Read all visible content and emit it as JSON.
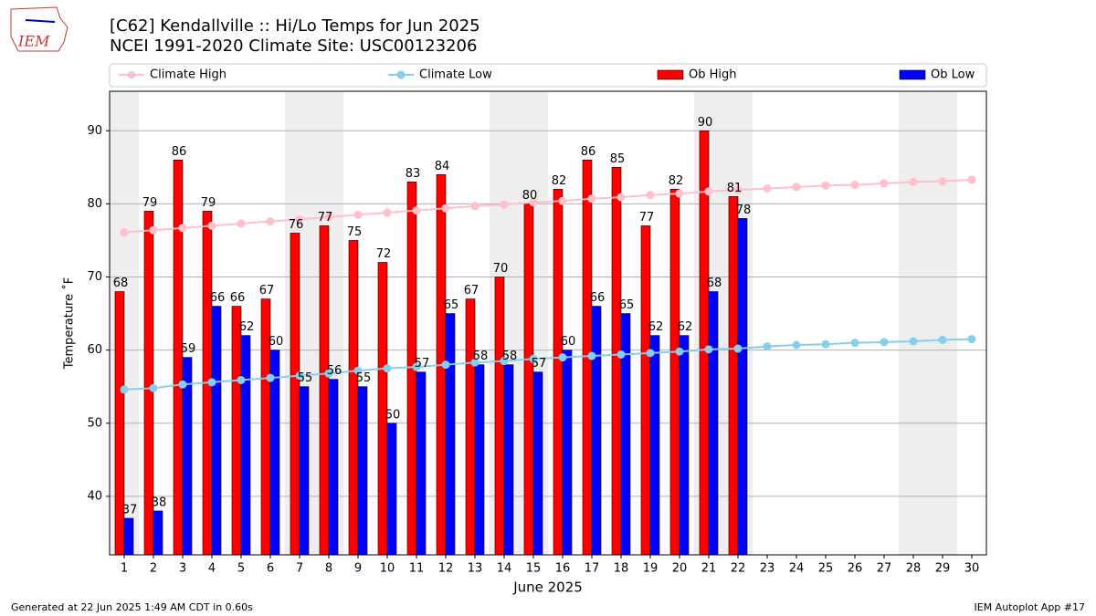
{
  "chart_data": {
    "type": "bar",
    "title": "[C62] Kendallville :: Hi/Lo Temps for Jun 2025",
    "subtitle": "NCEI 1991-2020 Climate Site: USC00123206",
    "x_label": "June 2025",
    "y_label": "Temperature ˚F",
    "categories": [
      "1",
      "2",
      "3",
      "4",
      "5",
      "6",
      "7",
      "8",
      "9",
      "10",
      "11",
      "12",
      "13",
      "14",
      "15",
      "16",
      "17",
      "18",
      "19",
      "20",
      "21",
      "22",
      "23",
      "24",
      "25",
      "26",
      "27",
      "28",
      "29",
      "30"
    ],
    "series": [
      {
        "name": "Climate High",
        "type": "line",
        "color": "#ffc0cb",
        "values": [
          76.1,
          76.4,
          76.7,
          77.0,
          77.3,
          77.6,
          77.9,
          78.2,
          78.5,
          78.8,
          79.1,
          79.4,
          79.7,
          79.9,
          80.2,
          80.4,
          80.7,
          80.9,
          81.2,
          81.4,
          81.7,
          81.9,
          82.1,
          82.3,
          82.5,
          82.6,
          82.8,
          83.0,
          83.1,
          83.3
        ]
      },
      {
        "name": "Climate Low",
        "type": "line",
        "color": "#87ceeb",
        "values": [
          54.6,
          54.8,
          55.3,
          55.6,
          55.9,
          56.2,
          56.5,
          56.8,
          57.2,
          57.5,
          57.7,
          58.0,
          58.3,
          58.5,
          58.8,
          59.0,
          59.2,
          59.4,
          59.6,
          59.8,
          60.1,
          60.2,
          60.5,
          60.7,
          60.8,
          61.0,
          61.1,
          61.2,
          61.4,
          61.5
        ]
      },
      {
        "name": "Ob High",
        "type": "bar",
        "color": "#ff0000",
        "values": [
          68,
          79,
          86,
          79,
          66,
          67,
          76,
          77,
          75,
          72,
          83,
          84,
          67,
          70,
          80,
          82,
          86,
          85,
          77,
          82,
          90,
          81,
          null,
          null,
          null,
          null,
          null,
          null,
          null,
          null
        ]
      },
      {
        "name": "Ob Low",
        "type": "bar",
        "color": "#0000ff",
        "values": [
          37,
          38,
          59,
          66,
          62,
          60,
          55,
          56,
          55,
          50,
          57,
          65,
          58,
          58,
          57,
          60,
          66,
          65,
          62,
          62,
          68,
          78,
          null,
          null,
          null,
          null,
          null,
          null,
          null,
          null
        ]
      }
    ],
    "ylim": [
      32,
      95.4
    ],
    "yticks": [
      40,
      50,
      60,
      70,
      80,
      90
    ],
    "grid": true
  },
  "logo": "IEM",
  "footer": {
    "left": "Generated at 22 Jun 2025 1:49 AM CDT in 0.60s",
    "right": "IEM Autoplot App #17"
  }
}
